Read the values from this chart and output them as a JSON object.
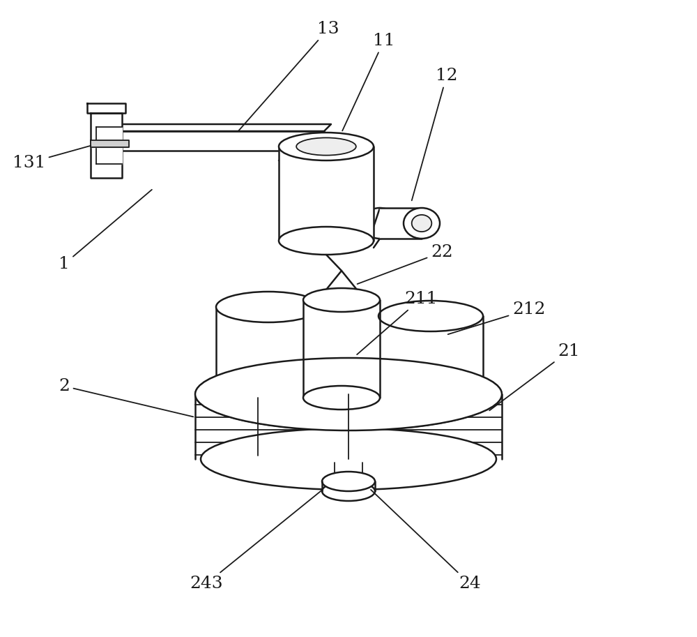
{
  "bg_color": "#ffffff",
  "line_color": "#1a1a1a",
  "line_width": 1.8,
  "fig_width": 10.0,
  "fig_height": 9.13,
  "label_fontsize": 18
}
